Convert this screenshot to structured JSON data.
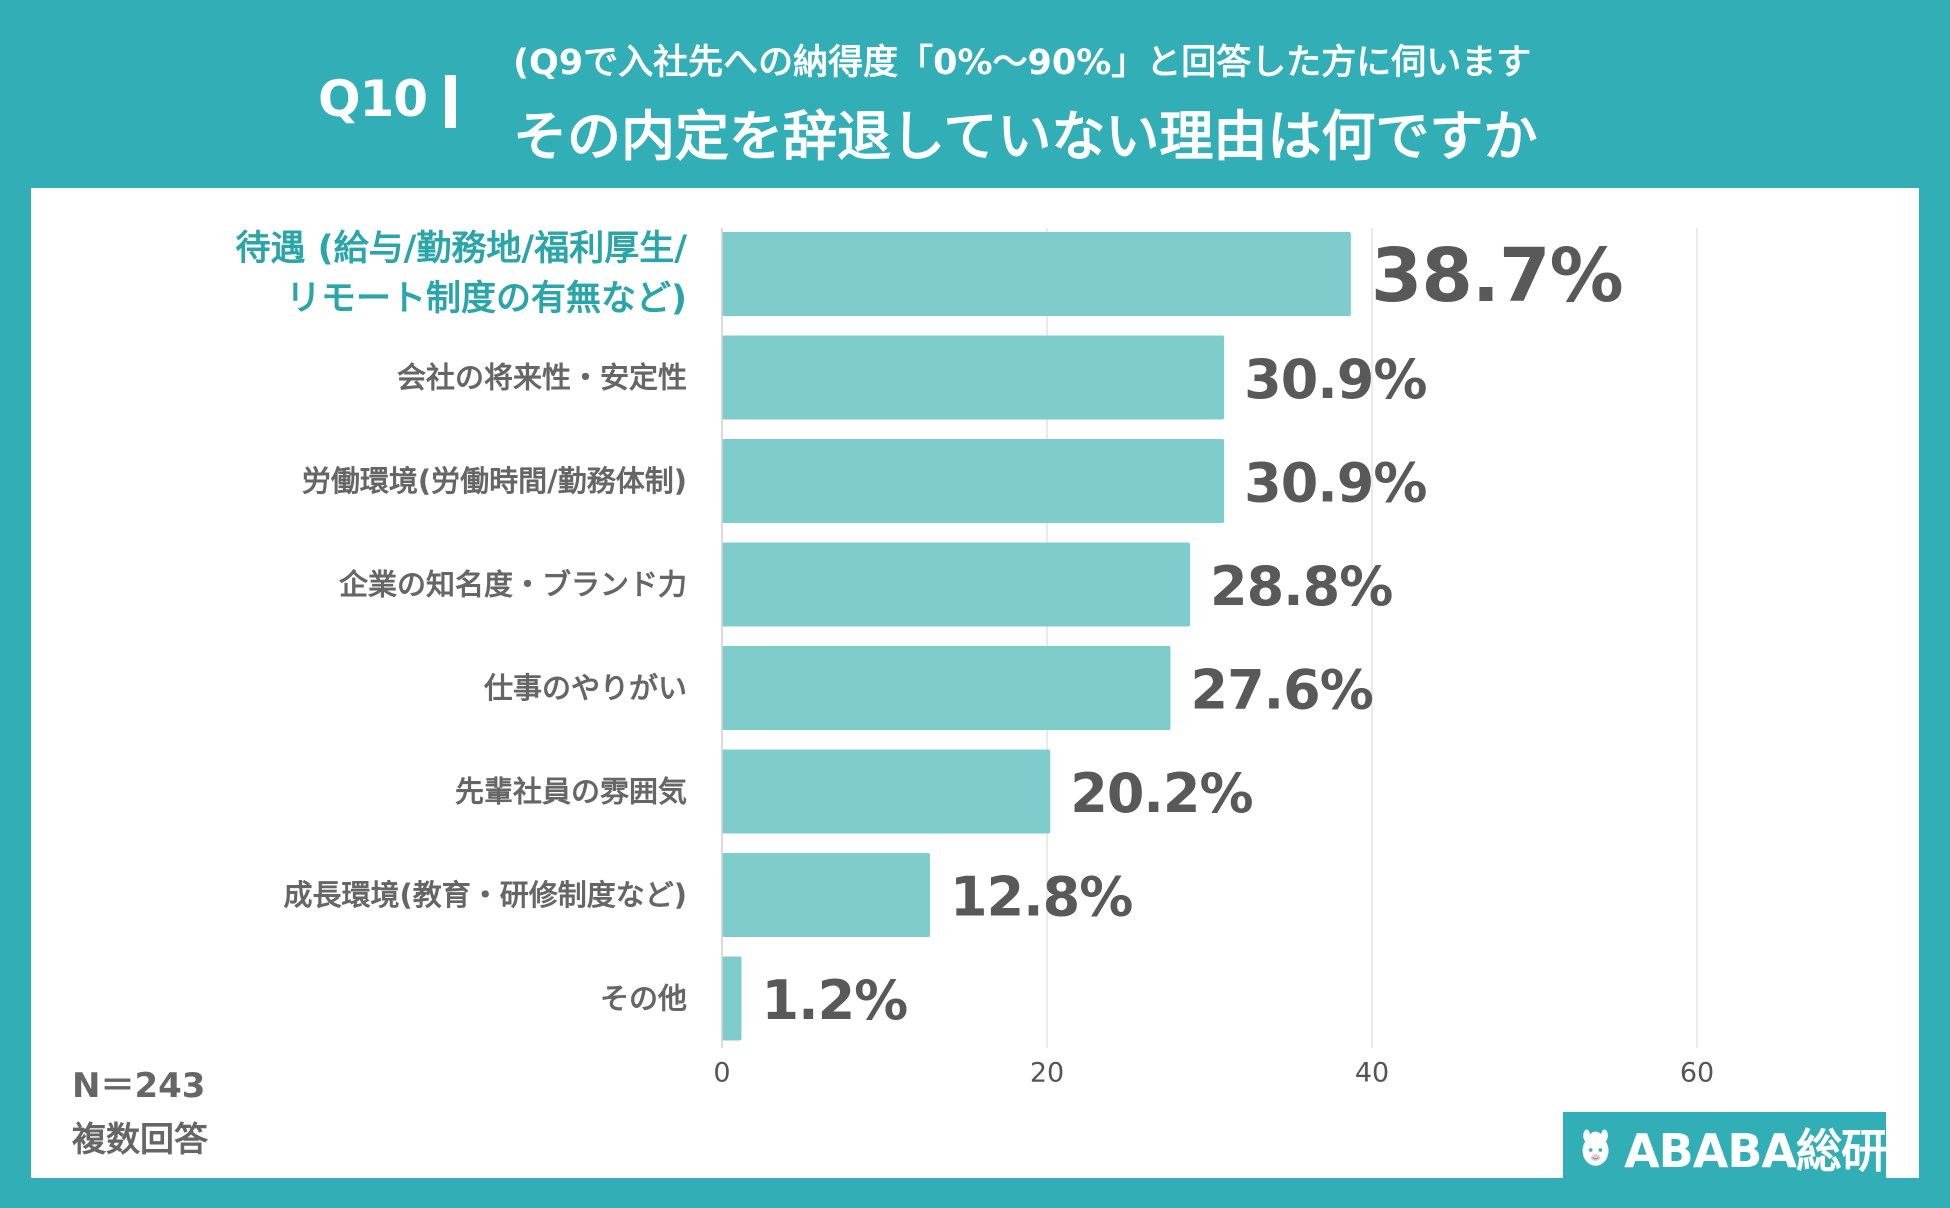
{
  "header": {
    "question": "Q10",
    "subtitle": "(Q9で入社先への納得度「0%〜90%」と回答した方に伺います",
    "title": "その内定を辞退していない理由は何ですか"
  },
  "colors": {
    "frame": "#31aeb6",
    "bar": "#7ecdcc",
    "highlight_label": "#2aa5a9",
    "label": "#666666",
    "value_label": "#595959"
  },
  "chart_data": {
    "type": "bar",
    "orientation": "horizontal",
    "categories": [
      [
        "待遇 (給与/勤務地/福利厚生/",
        "リモート制度の有無など)"
      ],
      [
        "会社の将来性・安定性"
      ],
      [
        "労働環境(労働時間/勤務体制)"
      ],
      [
        "企業の知名度・ブランド力"
      ],
      [
        "仕事のやりがい"
      ],
      [
        "先輩社員の雰囲気"
      ],
      [
        "成長環境(教育・研修制度など)"
      ],
      [
        "その他"
      ]
    ],
    "values": [
      38.7,
      30.9,
      30.9,
      28.8,
      27.6,
      20.2,
      12.8,
      1.2
    ],
    "value_labels": [
      "38.7%",
      "30.9%",
      "30.9%",
      "28.8%",
      "27.6%",
      "20.2%",
      "12.8%",
      "1.2%"
    ],
    "highlight_index": 0,
    "xlim": [
      0,
      100
    ],
    "xticks": [
      0,
      20,
      40,
      60,
      80,
      100
    ],
    "grid": true
  },
  "footer": {
    "n": "N＝243",
    "note": "複数回答"
  },
  "brand": {
    "name": "ABABA総研",
    "icon": "alpaca-icon"
  }
}
